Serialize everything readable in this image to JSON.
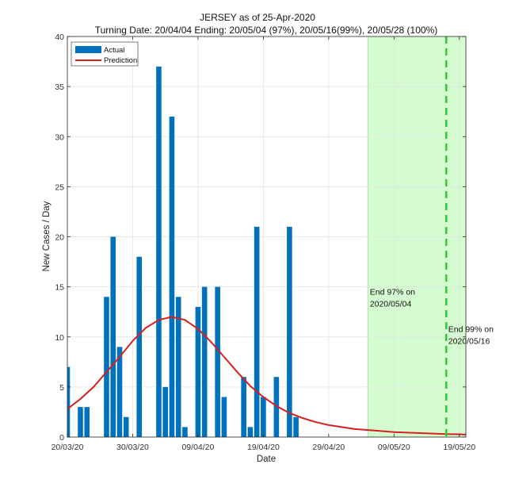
{
  "chart_data": {
    "type": "bar",
    "title": "JERSEY as of 25-Apr-2020",
    "subtitle": "Turning Date: 20/04/04  Ending: 20/05/04 (97%), 20/05/16(99%), 20/05/28 (100%)",
    "xlabel": "Date",
    "ylabel": "New Cases / Day",
    "ylim": [
      0,
      40
    ],
    "xlim_days": [
      0,
      60
    ],
    "y_ticks": [
      0,
      5,
      10,
      15,
      20,
      25,
      30,
      35,
      40
    ],
    "x_ticks": [
      {
        "day": 0,
        "label": "20/03/20"
      },
      {
        "day": 10,
        "label": "30/03/20"
      },
      {
        "day": 20,
        "label": "09/04/20"
      },
      {
        "day": 30,
        "label": "19/04/20"
      },
      {
        "day": 40,
        "label": "29/04/20"
      },
      {
        "day": 50,
        "label": "09/05/20"
      },
      {
        "day": 60,
        "label": "19/05/20"
      }
    ],
    "series": [
      {
        "name": "Actual",
        "kind": "bar",
        "color": "#0072BD",
        "points": [
          {
            "day": 0,
            "value": 7
          },
          {
            "day": 1,
            "value": 0
          },
          {
            "day": 2,
            "value": 3
          },
          {
            "day": 3,
            "value": 3
          },
          {
            "day": 4,
            "value": 0
          },
          {
            "day": 5,
            "value": 0
          },
          {
            "day": 6,
            "value": 14
          },
          {
            "day": 7,
            "value": 20
          },
          {
            "day": 8,
            "value": 9
          },
          {
            "day": 9,
            "value": 2
          },
          {
            "day": 10,
            "value": 0
          },
          {
            "day": 11,
            "value": 18
          },
          {
            "day": 12,
            "value": 0
          },
          {
            "day": 13,
            "value": 0
          },
          {
            "day": 14,
            "value": 37
          },
          {
            "day": 15,
            "value": 5
          },
          {
            "day": 16,
            "value": 32
          },
          {
            "day": 17,
            "value": 14
          },
          {
            "day": 18,
            "value": 1
          },
          {
            "day": 19,
            "value": 0
          },
          {
            "day": 20,
            "value": 13
          },
          {
            "day": 21,
            "value": 15
          },
          {
            "day": 22,
            "value": 0
          },
          {
            "day": 23,
            "value": 15
          },
          {
            "day": 24,
            "value": 4
          },
          {
            "day": 25,
            "value": 0
          },
          {
            "day": 26,
            "value": 0
          },
          {
            "day": 27,
            "value": 6
          },
          {
            "day": 28,
            "value": 1
          },
          {
            "day": 29,
            "value": 21
          },
          {
            "day": 30,
            "value": 4
          },
          {
            "day": 31,
            "value": 0
          },
          {
            "day": 32,
            "value": 6
          },
          {
            "day": 33,
            "value": 0
          },
          {
            "day": 34,
            "value": 21
          },
          {
            "day": 35,
            "value": 2
          }
        ]
      },
      {
        "name": "Prediction",
        "kind": "line",
        "color": "#D62020",
        "points": [
          {
            "day": 0,
            "value": 2.8
          },
          {
            "day": 2,
            "value": 3.8
          },
          {
            "day": 4,
            "value": 5.0
          },
          {
            "day": 6,
            "value": 6.5
          },
          {
            "day": 8,
            "value": 8.0
          },
          {
            "day": 10,
            "value": 9.6
          },
          {
            "day": 12,
            "value": 10.9
          },
          {
            "day": 14,
            "value": 11.7
          },
          {
            "day": 16,
            "value": 12.0
          },
          {
            "day": 18,
            "value": 11.7
          },
          {
            "day": 20,
            "value": 10.8
          },
          {
            "day": 22,
            "value": 9.5
          },
          {
            "day": 24,
            "value": 8.0
          },
          {
            "day": 26,
            "value": 6.5
          },
          {
            "day": 28,
            "value": 5.1
          },
          {
            "day": 30,
            "value": 4.0
          },
          {
            "day": 32,
            "value": 3.1
          },
          {
            "day": 34,
            "value": 2.4
          },
          {
            "day": 36,
            "value": 1.9
          },
          {
            "day": 38,
            "value": 1.5
          },
          {
            "day": 40,
            "value": 1.2
          },
          {
            "day": 42,
            "value": 1.0
          },
          {
            "day": 44,
            "value": 0.8
          },
          {
            "day": 46,
            "value": 0.7
          },
          {
            "day": 48,
            "value": 0.6
          },
          {
            "day": 50,
            "value": 0.5
          },
          {
            "day": 52,
            "value": 0.45
          },
          {
            "day": 54,
            "value": 0.4
          },
          {
            "day": 56,
            "value": 0.35
          },
          {
            "day": 58,
            "value": 0.3
          },
          {
            "day": 60,
            "value": 0.28
          },
          {
            "day": 61,
            "value": 0.25
          }
        ]
      }
    ],
    "shaded_region": {
      "start_day": 46,
      "end_day": 61,
      "color": "#D5FBD0",
      "edge_color": "#A6E59C"
    },
    "vline": {
      "day": 58,
      "color": "#2ECC2E",
      "style": "dashed"
    },
    "annotations": [
      {
        "line1": "End 97% on",
        "line2": "2020/05/04",
        "day": 46.3,
        "value": 14.2
      },
      {
        "line1": "End 99% on",
        "line2": "2020/05/16",
        "day": 58.3,
        "value": 10.5
      }
    ],
    "legend": {
      "position": "top-left",
      "actual_label": "Actual",
      "prediction_label": "Prediction"
    }
  }
}
